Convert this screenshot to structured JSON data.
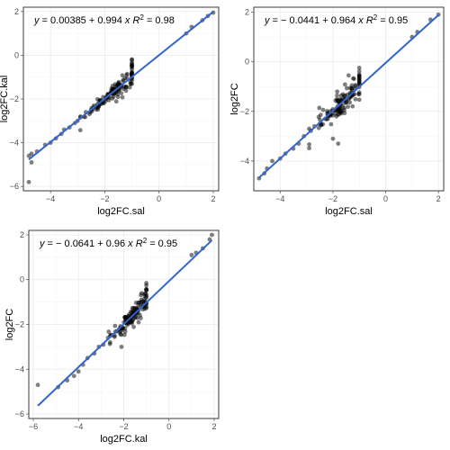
{
  "chart_data": [
    {
      "type": "scatter",
      "xlabel": "log2FC.sal",
      "ylabel": "log2FC.kal",
      "xlim": [
        -5,
        2.2
      ],
      "ylim": [
        -6.2,
        2.2
      ],
      "xticks": [
        -4,
        -2,
        0,
        2
      ],
      "yticks": [
        -6,
        -4,
        -2,
        0,
        2
      ],
      "x_tick_labels": [
        "−4",
        "−2",
        "0",
        "2"
      ],
      "y_tick_labels": [
        "−6",
        "−4",
        "−2",
        "0",
        "2"
      ],
      "fit": {
        "intercept": 0.00385,
        "slope": 0.994
      },
      "equation": {
        "y": "y",
        "eq": " = 0.00385 + 0.994 ",
        "x": "x",
        "r": "R",
        "r2": " = 0.98"
      },
      "grid": true,
      "points_x": [
        -4.8,
        -4.7,
        -4.7,
        -4.5,
        -4.2,
        -4.0,
        -3.8,
        -3.6,
        -3.5,
        -3.3,
        -3.1,
        -3.0,
        -2.9,
        -2.7,
        -2.5,
        -2.4,
        -2.3,
        -2.2,
        -1.9,
        -1.7,
        1.0,
        1.2,
        1.6,
        1.8,
        2.0,
        -4.8
      ],
      "points_y": [
        -5.8,
        -4.9,
        -4.5,
        -4.4,
        -4.1,
        -4.0,
        -3.8,
        -3.6,
        -3.4,
        -3.3,
        -3.1,
        -3.0,
        -2.8,
        -2.6,
        -2.5,
        -2.3,
        -2.4,
        -2.1,
        -1.9,
        -1.6,
        1.0,
        1.3,
        1.6,
        1.8,
        1.95,
        -4.6
      ],
      "dense_cluster": {
        "x_center": -1.6,
        "y_center": -1.6,
        "x_spread": 0.55,
        "y_spread": 0.35,
        "n": 130
      }
    },
    {
      "type": "scatter",
      "xlabel": "log2FC.sal",
      "ylabel": "log2FC",
      "xlim": [
        -5,
        2.2
      ],
      "ylim": [
        -5.2,
        2.2
      ],
      "xticks": [
        -4,
        -2,
        0,
        2
      ],
      "yticks": [
        -4,
        -2,
        0,
        2
      ],
      "x_tick_labels": [
        "−4",
        "−2",
        "0",
        "2"
      ],
      "y_tick_labels": [
        "−4",
        "−2",
        "0",
        "2"
      ],
      "fit": {
        "intercept": -0.0441,
        "slope": 0.964
      },
      "equation": {
        "y": "y",
        "eq": " = − 0.0441 + 0.964 ",
        "x": "x",
        "r": "R",
        "r2": " = 0.95"
      },
      "grid": true,
      "points_x": [
        -4.8,
        -4.6,
        -4.5,
        -4.3,
        -4.0,
        -3.8,
        -3.5,
        -3.3,
        -3.1,
        -2.9,
        -2.7,
        -2.5,
        -2.3,
        -2.1,
        1.0,
        1.2,
        1.7,
        2.0,
        -2.0,
        -1.8
      ],
      "points_y": [
        -4.7,
        -4.5,
        -4.3,
        -4.0,
        -3.9,
        -3.7,
        -3.5,
        -3.3,
        -3.0,
        -2.7,
        -2.6,
        -2.5,
        -2.3,
        -2.0,
        1.0,
        1.2,
        1.7,
        1.9,
        -3.1,
        -3.3
      ],
      "dense_cluster": {
        "x_center": -1.6,
        "y_center": -1.7,
        "x_spread": 0.55,
        "y_spread": 0.5,
        "n": 130
      }
    },
    {
      "type": "scatter",
      "xlabel": "log2FC.kal",
      "ylabel": "log2FC",
      "xlim": [
        -6.2,
        2.2
      ],
      "ylim": [
        -6.2,
        2.2
      ],
      "xticks": [
        -6,
        -4,
        -2,
        0,
        2
      ],
      "yticks": [
        -6,
        -4,
        -2,
        0,
        2
      ],
      "x_tick_labels": [
        "−6",
        "−4",
        "−2",
        "0",
        "2"
      ],
      "y_tick_labels": [
        "−6",
        "−4",
        "−2",
        "0",
        "2"
      ],
      "fit": {
        "intercept": -0.0641,
        "slope": 0.96
      },
      "equation": {
        "y": "y",
        "eq": " = − 0.0641 + 0.96 ",
        "x": "x",
        "r": "R",
        "r2": " = 0.95"
      },
      "grid": true,
      "points_x": [
        -5.8,
        -4.9,
        -4.5,
        -4.2,
        -4.0,
        -3.8,
        -3.6,
        -3.3,
        -3.1,
        -2.9,
        -2.7,
        -2.6,
        -2.4,
        -2.2,
        1.0,
        1.2,
        1.5,
        1.8,
        1.9,
        -2.1
      ],
      "points_y": [
        -4.7,
        -4.8,
        -4.5,
        -4.3,
        -4.1,
        -3.8,
        -3.5,
        -3.3,
        -3.0,
        -2.9,
        -2.6,
        -2.8,
        -2.5,
        -2.2,
        1.1,
        1.2,
        1.4,
        1.8,
        2.0,
        -3.0
      ],
      "dense_cluster": {
        "x_center": -1.6,
        "y_center": -1.6,
        "x_spread": 0.45,
        "y_spread": 0.45,
        "n": 130
      }
    }
  ]
}
